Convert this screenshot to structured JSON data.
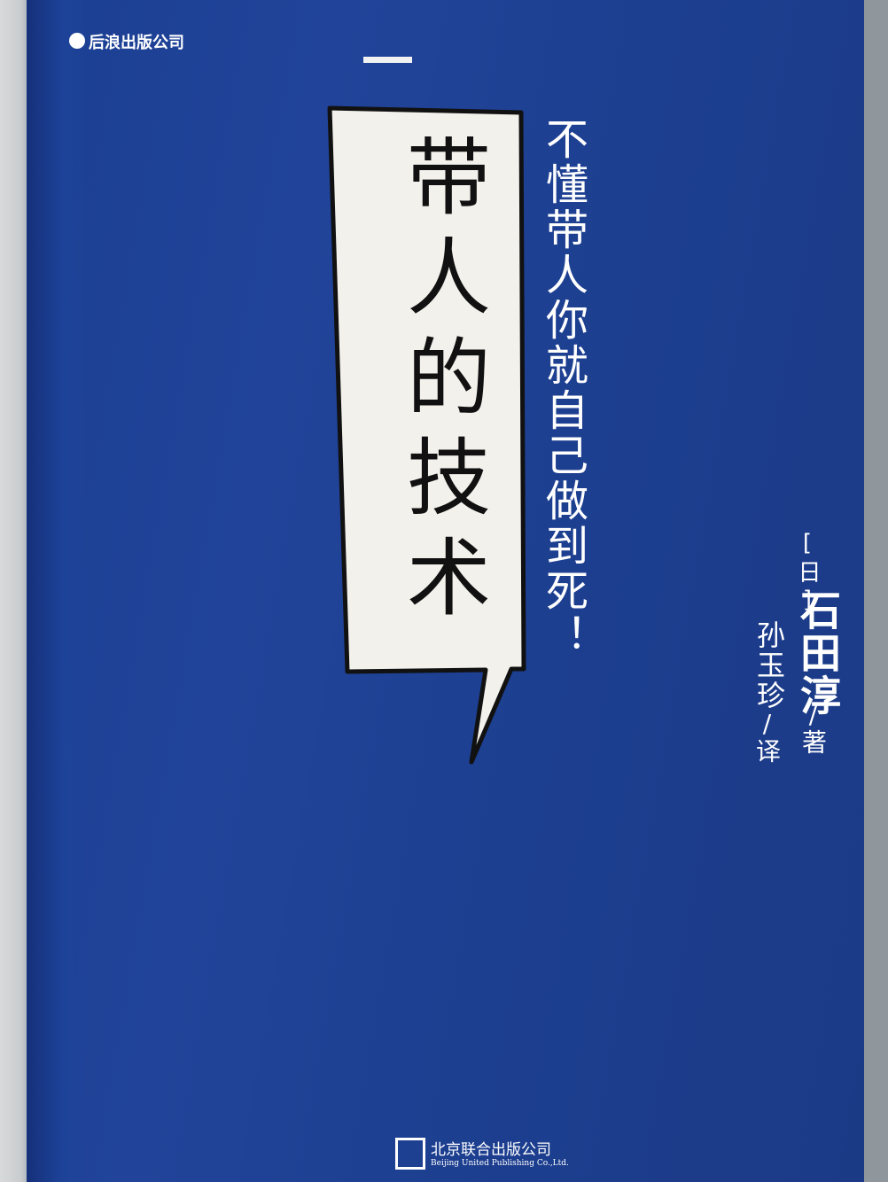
{
  "header": {
    "publisher": "后浪出版公司"
  },
  "cover": {
    "title": "带人的技术",
    "subtitle": "不懂带人你就自己做到死！",
    "author": {
      "nationality": "[日]",
      "name": "石田淳",
      "role": "/著"
    },
    "translator": {
      "name": "孙玉珍",
      "role": "/译"
    }
  },
  "footer": {
    "publisher": "北京联合出版公司",
    "publisher_en": "Beijing United Publishing Co.,Ltd."
  }
}
